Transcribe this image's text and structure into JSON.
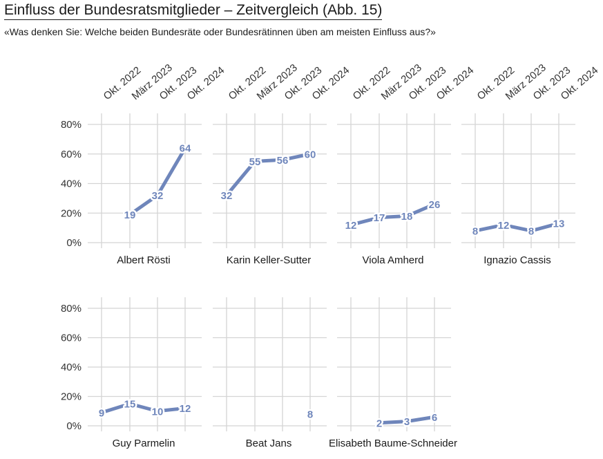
{
  "header": {
    "title": "Einfluss der Bundesratsmitglieder – Zeitvergleich  (Abb. 15)",
    "subtitle": "«Was denken Sie: Welche beiden Bundesräte oder Bundesrätinnen üben am meisten Einfluss aus?»"
  },
  "chart_data": {
    "type": "line",
    "x": [
      "Okt. 2022",
      "März 2023",
      "Okt. 2023",
      "Okt. 2024"
    ],
    "y_ticks": [
      "0%",
      "20%",
      "40%",
      "60%",
      "80%"
    ],
    "ylim": [
      0,
      90
    ],
    "line_color": "#6f86bb",
    "grid_color": "#d4d4d4",
    "panels": [
      {
        "name": "Albert Rösti",
        "values": [
          null,
          19,
          32,
          64
        ]
      },
      {
        "name": "Karin Keller-Sutter",
        "values": [
          32,
          55,
          56,
          60
        ]
      },
      {
        "name": "Viola Amherd",
        "values": [
          12,
          17,
          18,
          26
        ]
      },
      {
        "name": "Ignazio Cassis",
        "values": [
          8,
          12,
          8,
          13
        ]
      },
      {
        "name": "Guy Parmelin",
        "values": [
          9,
          15,
          10,
          12
        ]
      },
      {
        "name": "Beat Jans",
        "values": [
          null,
          null,
          null,
          8
        ]
      },
      {
        "name": "Elisabeth Baume-Schneider",
        "values": [
          null,
          2,
          3,
          6
        ]
      }
    ]
  }
}
